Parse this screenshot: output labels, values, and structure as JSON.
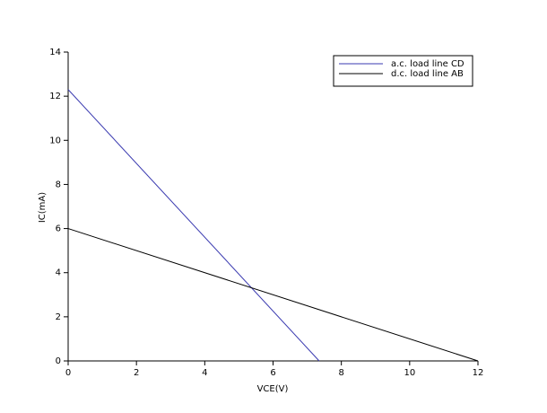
{
  "chart_data": {
    "type": "line",
    "x_label": "VCE(V)",
    "y_label": "IC(mA)",
    "series": [
      {
        "name": "a.c. load line CD",
        "color": "#3a3ab0",
        "x": [
          0,
          7.35
        ],
        "values": [
          12.3,
          0
        ]
      },
      {
        "name": "d.c. load line AB",
        "color": "#000000",
        "x": [
          0,
          12
        ],
        "values": [
          6,
          0
        ]
      }
    ],
    "xlim": [
      0,
      12
    ],
    "xticks": [
      0,
      2,
      4,
      6,
      8,
      10,
      12
    ],
    "ylim": [
      0,
      14
    ],
    "yticks": [
      0,
      2,
      4,
      6,
      8,
      10,
      12,
      14
    ],
    "legend": "upper right"
  }
}
